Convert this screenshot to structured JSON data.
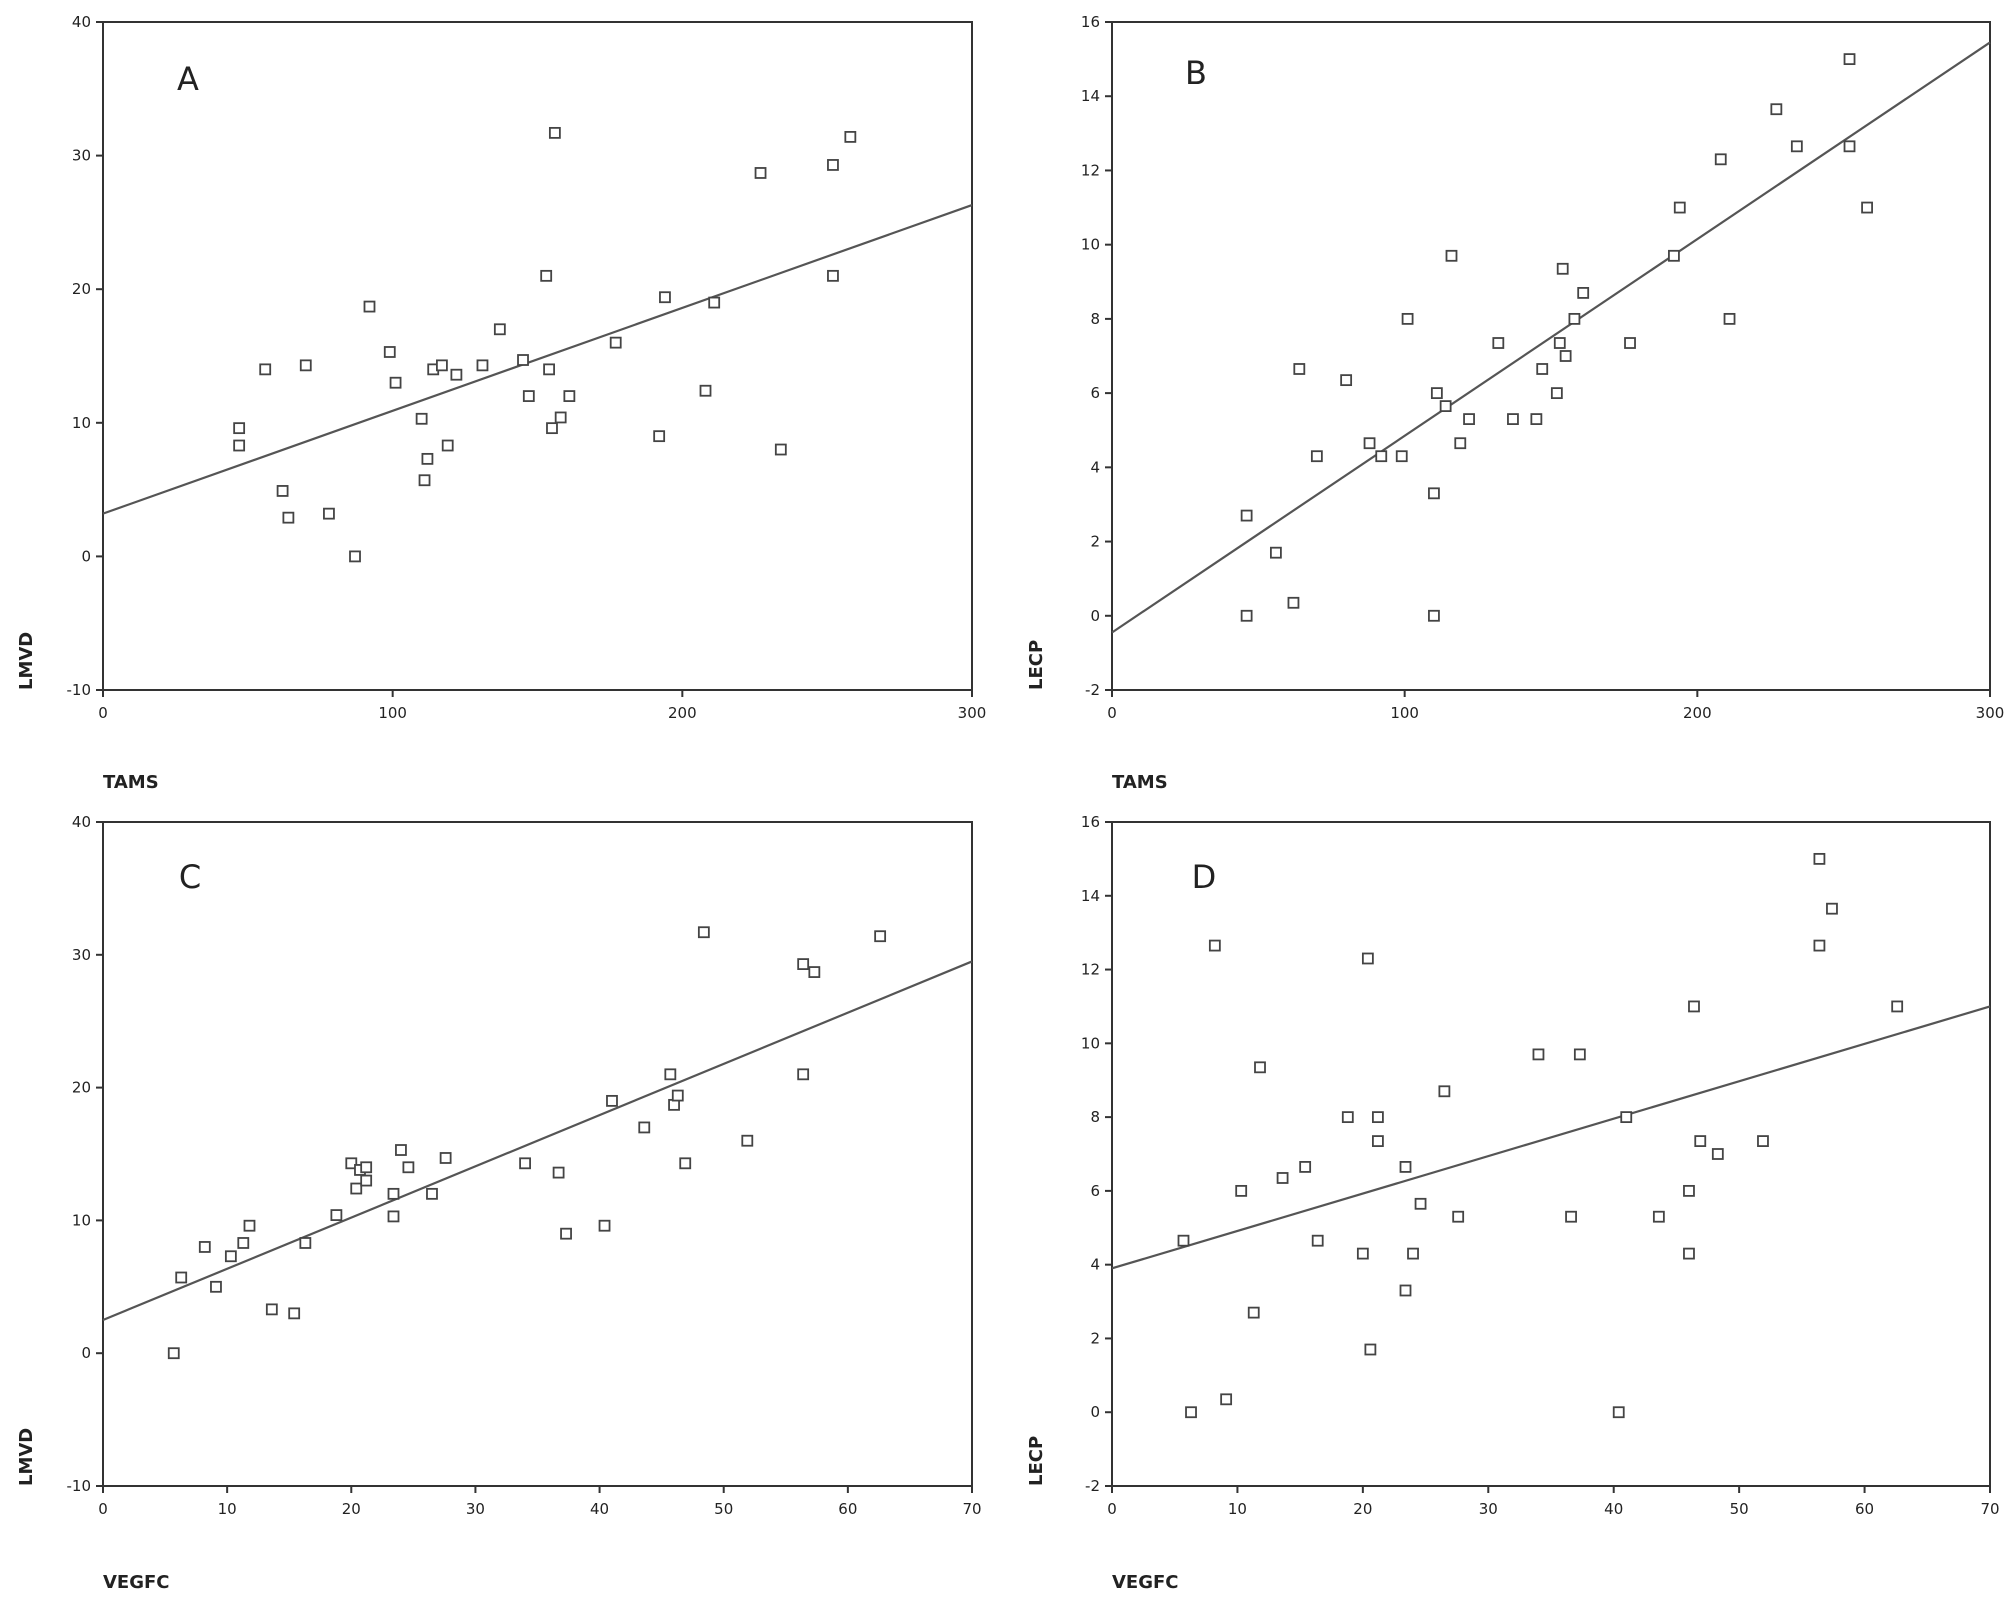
{
  "figure": {
    "background": "#ffffff",
    "ink": "#333333",
    "line_color": "#555555",
    "marker_color": "#444444"
  },
  "chart_data": [
    {
      "type": "scatter",
      "panel": "A",
      "title": "",
      "xlabel": "TAMS",
      "ylabel": "LMVD",
      "xlim": [
        0,
        300
      ],
      "ylim": [
        -10,
        40
      ],
      "xticks": [
        0,
        100,
        200,
        300
      ],
      "yticks": [
        -10,
        0,
        10,
        20,
        30,
        40
      ],
      "grid": false,
      "marker": "hollow-square",
      "fit_line": [
        [
          0,
          3.2
        ],
        [
          300,
          26.3
        ]
      ],
      "points": [
        [
          47,
          9.6
        ],
        [
          47,
          8.3
        ],
        [
          56,
          14.0
        ],
        [
          62,
          4.9
        ],
        [
          64,
          2.9
        ],
        [
          70,
          14.3
        ],
        [
          78,
          3.2
        ],
        [
          87,
          0.0
        ],
        [
          92,
          18.7
        ],
        [
          99,
          15.3
        ],
        [
          101,
          13.0
        ],
        [
          110,
          10.3
        ],
        [
          112,
          7.3
        ],
        [
          111,
          5.7
        ],
        [
          114,
          14.0
        ],
        [
          117,
          14.3
        ],
        [
          119,
          8.3
        ],
        [
          122,
          13.6
        ],
        [
          131,
          14.3
        ],
        [
          137,
          17.0
        ],
        [
          145,
          14.7
        ],
        [
          147,
          12.0
        ],
        [
          153,
          21.0
        ],
        [
          154,
          14.0
        ],
        [
          155,
          9.6
        ],
        [
          156,
          31.7
        ],
        [
          158,
          10.4
        ],
        [
          161,
          12.0
        ],
        [
          177,
          16.0
        ],
        [
          192,
          9.0
        ],
        [
          194,
          19.4
        ],
        [
          208,
          12.4
        ],
        [
          211,
          19.0
        ],
        [
          227,
          28.7
        ],
        [
          234,
          8.0
        ],
        [
          252,
          29.3
        ],
        [
          252,
          21.0
        ],
        [
          258,
          31.4
        ]
      ]
    },
    {
      "type": "scatter",
      "panel": "B",
      "title": "",
      "xlabel": "TAMS",
      "ylabel": "LECP",
      "xlim": [
        0,
        300
      ],
      "ylim": [
        -2,
        16
      ],
      "xticks": [
        0,
        100,
        200,
        300
      ],
      "yticks": [
        -2,
        0,
        2,
        4,
        6,
        8,
        10,
        12,
        14,
        16
      ],
      "grid": false,
      "marker": "hollow-square",
      "fit_line": [
        [
          0,
          -0.45
        ],
        [
          300,
          15.45
        ]
      ],
      "points": [
        [
          46,
          2.7
        ],
        [
          46,
          0.0
        ],
        [
          56,
          1.7
        ],
        [
          62,
          0.35
        ],
        [
          64,
          6.65
        ],
        [
          70,
          4.3
        ],
        [
          80,
          6.35
        ],
        [
          88,
          4.65
        ],
        [
          92,
          4.3
        ],
        [
          99,
          4.3
        ],
        [
          101,
          8.0
        ],
        [
          110,
          3.3
        ],
        [
          110,
          0.0
        ],
        [
          111,
          6.0
        ],
        [
          114,
          5.65
        ],
        [
          116,
          9.7
        ],
        [
          119,
          4.65
        ],
        [
          122,
          5.3
        ],
        [
          137,
          5.3
        ],
        [
          132,
          7.35
        ],
        [
          147,
          6.65
        ],
        [
          145,
          5.3
        ],
        [
          152,
          6.0
        ],
        [
          154,
          9.35
        ],
        [
          153,
          7.35
        ],
        [
          155,
          7.0
        ],
        [
          158,
          8.0
        ],
        [
          161,
          8.7
        ],
        [
          177,
          7.35
        ],
        [
          192,
          9.7
        ],
        [
          194,
          11.0
        ],
        [
          208,
          12.3
        ],
        [
          211,
          8.0
        ],
        [
          227,
          13.65
        ],
        [
          234,
          12.65
        ],
        [
          252,
          15.0
        ],
        [
          252,
          12.65
        ],
        [
          258,
          11.0
        ]
      ]
    },
    {
      "type": "scatter",
      "panel": "C",
      "title": "",
      "xlabel": "VEGFC",
      "ylabel": "LMVD",
      "xlim": [
        0,
        70
      ],
      "ylim": [
        -10,
        40
      ],
      "xticks": [
        0,
        10,
        20,
        30,
        40,
        50,
        60,
        70
      ],
      "yticks": [
        -10,
        0,
        10,
        20,
        30,
        40
      ],
      "grid": false,
      "marker": "hollow-square",
      "fit_line": [
        [
          0,
          2.5
        ],
        [
          70,
          29.5
        ]
      ],
      "points": [
        [
          5.7,
          0.0
        ],
        [
          6.3,
          5.7
        ],
        [
          8.2,
          8.0
        ],
        [
          9.1,
          5.0
        ],
        [
          10.3,
          7.3
        ],
        [
          11.3,
          8.3
        ],
        [
          11.8,
          9.6
        ],
        [
          13.6,
          3.3
        ],
        [
          15.4,
          3.0
        ],
        [
          16.3,
          8.3
        ],
        [
          18.8,
          10.4
        ],
        [
          20.0,
          14.3
        ],
        [
          20.4,
          12.4
        ],
        [
          20.7,
          13.8
        ],
        [
          21.2,
          14.0
        ],
        [
          21.2,
          13.0
        ],
        [
          23.4,
          12.0
        ],
        [
          23.4,
          10.3
        ],
        [
          24.0,
          15.3
        ],
        [
          24.6,
          14.0
        ],
        [
          26.5,
          12.0
        ],
        [
          27.6,
          14.7
        ],
        [
          34.0,
          14.3
        ],
        [
          36.7,
          13.6
        ],
        [
          37.3,
          9.0
        ],
        [
          40.4,
          9.6
        ],
        [
          41.0,
          19.0
        ],
        [
          43.6,
          17.0
        ],
        [
          45.7,
          21.0
        ],
        [
          46.0,
          18.7
        ],
        [
          46.3,
          19.4
        ],
        [
          46.9,
          14.3
        ],
        [
          48.4,
          31.7
        ],
        [
          51.9,
          16.0
        ],
        [
          56.4,
          29.3
        ],
        [
          56.4,
          21.0
        ],
        [
          57.3,
          28.7
        ],
        [
          62.6,
          31.4
        ]
      ]
    },
    {
      "type": "scatter",
      "panel": "D",
      "title": "",
      "xlabel": "VEGFC",
      "ylabel": "LECP",
      "xlim": [
        0,
        70
      ],
      "ylim": [
        -2,
        16
      ],
      "xticks": [
        0,
        10,
        20,
        30,
        40,
        50,
        60,
        70
      ],
      "yticks": [
        -2,
        0,
        2,
        4,
        6,
        8,
        10,
        12,
        14,
        16
      ],
      "grid": false,
      "marker": "hollow-square",
      "fit_line": [
        [
          0,
          3.9
        ],
        [
          70,
          11.0
        ]
      ],
      "points": [
        [
          5.7,
          4.65
        ],
        [
          6.3,
          0.0
        ],
        [
          8.2,
          12.65
        ],
        [
          9.1,
          0.35
        ],
        [
          10.3,
          6.0
        ],
        [
          11.3,
          2.7
        ],
        [
          11.8,
          9.35
        ],
        [
          13.6,
          6.35
        ],
        [
          15.4,
          6.65
        ],
        [
          16.4,
          4.65
        ],
        [
          18.8,
          8.0
        ],
        [
          20.0,
          4.3
        ],
        [
          20.4,
          12.3
        ],
        [
          20.6,
          1.7
        ],
        [
          21.2,
          8.0
        ],
        [
          21.2,
          7.35
        ],
        [
          23.4,
          6.65
        ],
        [
          23.4,
          3.3
        ],
        [
          24.0,
          4.3
        ],
        [
          24.6,
          5.65
        ],
        [
          26.5,
          8.7
        ],
        [
          27.6,
          5.3
        ],
        [
          34.0,
          9.7
        ],
        [
          36.6,
          5.3
        ],
        [
          37.3,
          9.7
        ],
        [
          40.4,
          0.0
        ],
        [
          41.0,
          8.0
        ],
        [
          43.6,
          5.3
        ],
        [
          46.0,
          6.0
        ],
        [
          46.0,
          4.3
        ],
        [
          46.4,
          11.0
        ],
        [
          46.9,
          7.35
        ],
        [
          48.3,
          7.0
        ],
        [
          51.9,
          7.35
        ],
        [
          56.4,
          15.0
        ],
        [
          56.4,
          12.65
        ],
        [
          57.4,
          13.65
        ],
        [
          62.6,
          11.0
        ]
      ]
    }
  ]
}
